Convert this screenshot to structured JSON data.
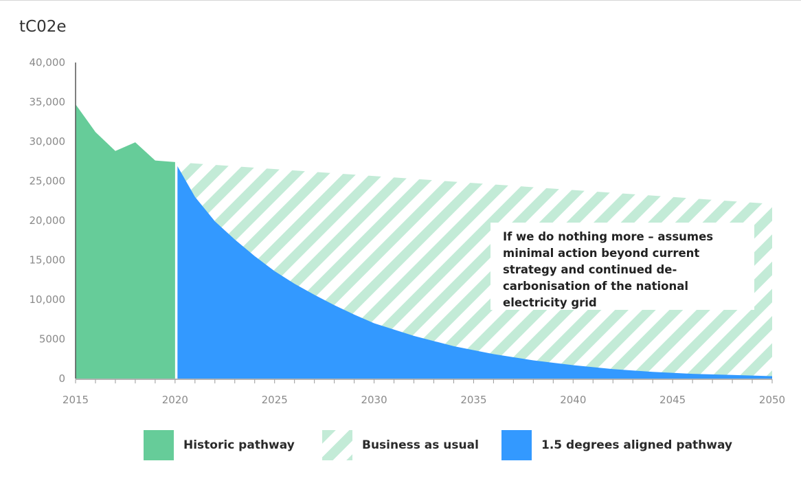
{
  "chart_data": {
    "type": "area",
    "ylabel": "tC02e",
    "ylim": [
      0,
      40000
    ],
    "xlim": [
      2015,
      2050
    ],
    "y_ticks": [
      "0",
      "5000",
      "10,000",
      "15,000",
      "20,000",
      "25,000",
      "30,000",
      "35,000",
      "40,000"
    ],
    "x_ticks": [
      "2015",
      "2020",
      "2025",
      "2030",
      "2035",
      "2040",
      "2045",
      "2050"
    ],
    "series": [
      {
        "name": "Historic pathway",
        "color": "#66cc99",
        "x": [
          2015,
          2016,
          2017,
          2018,
          2019,
          2020
        ],
        "values": [
          34700,
          31200,
          28800,
          29900,
          27600,
          27400
        ]
      },
      {
        "name": "Business as usual",
        "color": "#c3ebd7",
        "pattern": "diagonal-hatch",
        "x": [
          2020,
          2050
        ],
        "values": [
          27400,
          22100
        ]
      },
      {
        "name": "1.5 degrees aligned pathway",
        "color": "#3399ff",
        "x": [
          2020,
          2021,
          2022,
          2023,
          2024,
          2025,
          2026,
          2027,
          2028,
          2029,
          2030,
          2032,
          2034,
          2036,
          2038,
          2040,
          2042,
          2044,
          2046,
          2048,
          2050
        ],
        "values": [
          27400,
          23000,
          19900,
          17600,
          15500,
          13600,
          12000,
          10600,
          9300,
          8100,
          7000,
          5400,
          4100,
          3100,
          2300,
          1700,
          1200,
          850,
          600,
          450,
          300
        ]
      }
    ],
    "annotation": "If we do nothing more – assumes minimal action beyond current strategy and continued de-carbonisation of the national electricity grid",
    "legend_position": "bottom",
    "grid": false
  }
}
